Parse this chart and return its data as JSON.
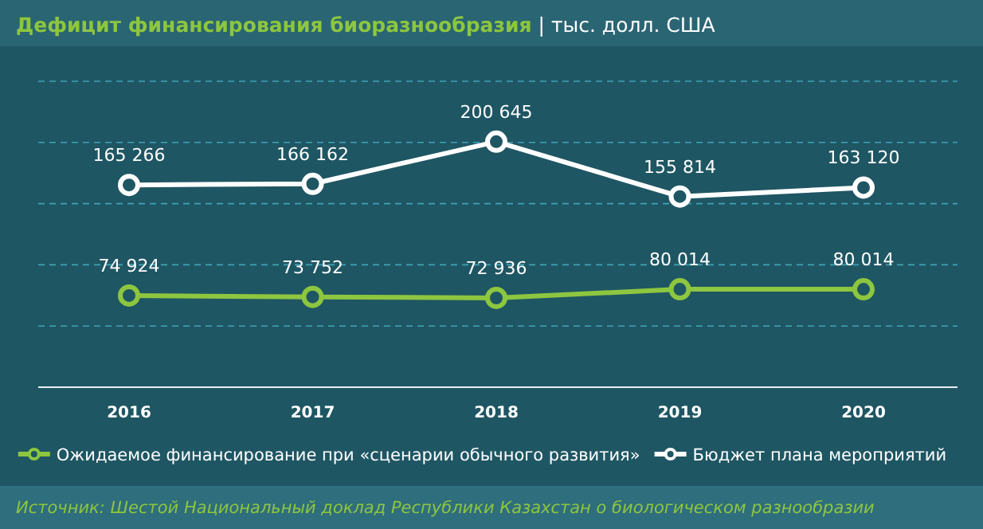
{
  "chart_data": {
    "type": "line",
    "title": "Дефицит финансирования биоразнообразия",
    "subtitle": "| тыс. долл. США",
    "categories": [
      "2016",
      "2017",
      "2018",
      "2019",
      "2020"
    ],
    "series": [
      {
        "name": "Ожидаемое финансирование при «сценарии обычного развития»",
        "color": "#8dc63f",
        "values": [
          74924,
          73752,
          72936,
          80014,
          80014
        ],
        "value_labels": [
          "74 924",
          "73 752",
          "72 936",
          "80 014",
          "80 014"
        ]
      },
      {
        "name": "Бюджет плана мероприятий",
        "color": "#ffffff",
        "values": [
          165266,
          166162,
          200645,
          155814,
          163120
        ],
        "value_labels": [
          "165 266",
          "166 162",
          "200 645",
          "155 814",
          "163 120"
        ]
      }
    ],
    "ylim": [
      0,
      250000
    ],
    "yticks": [
      {
        "value": 0,
        "label": null
      },
      {
        "value": 50000,
        "label": null
      },
      {
        "value": 100000,
        "label": null
      },
      {
        "value": 150000,
        "label": null
      },
      {
        "value": 200000,
        "label": null
      },
      {
        "value": 250000,
        "label": null
      }
    ],
    "tick_labels": "x",
    "grid": "y",
    "legend": "bottom",
    "marker": "circle",
    "line_style": "solid",
    "annotations": [
      "Источник: Шестой Национальный доклад Республики Казахстан о биологическом разнообразии"
    ]
  }
}
